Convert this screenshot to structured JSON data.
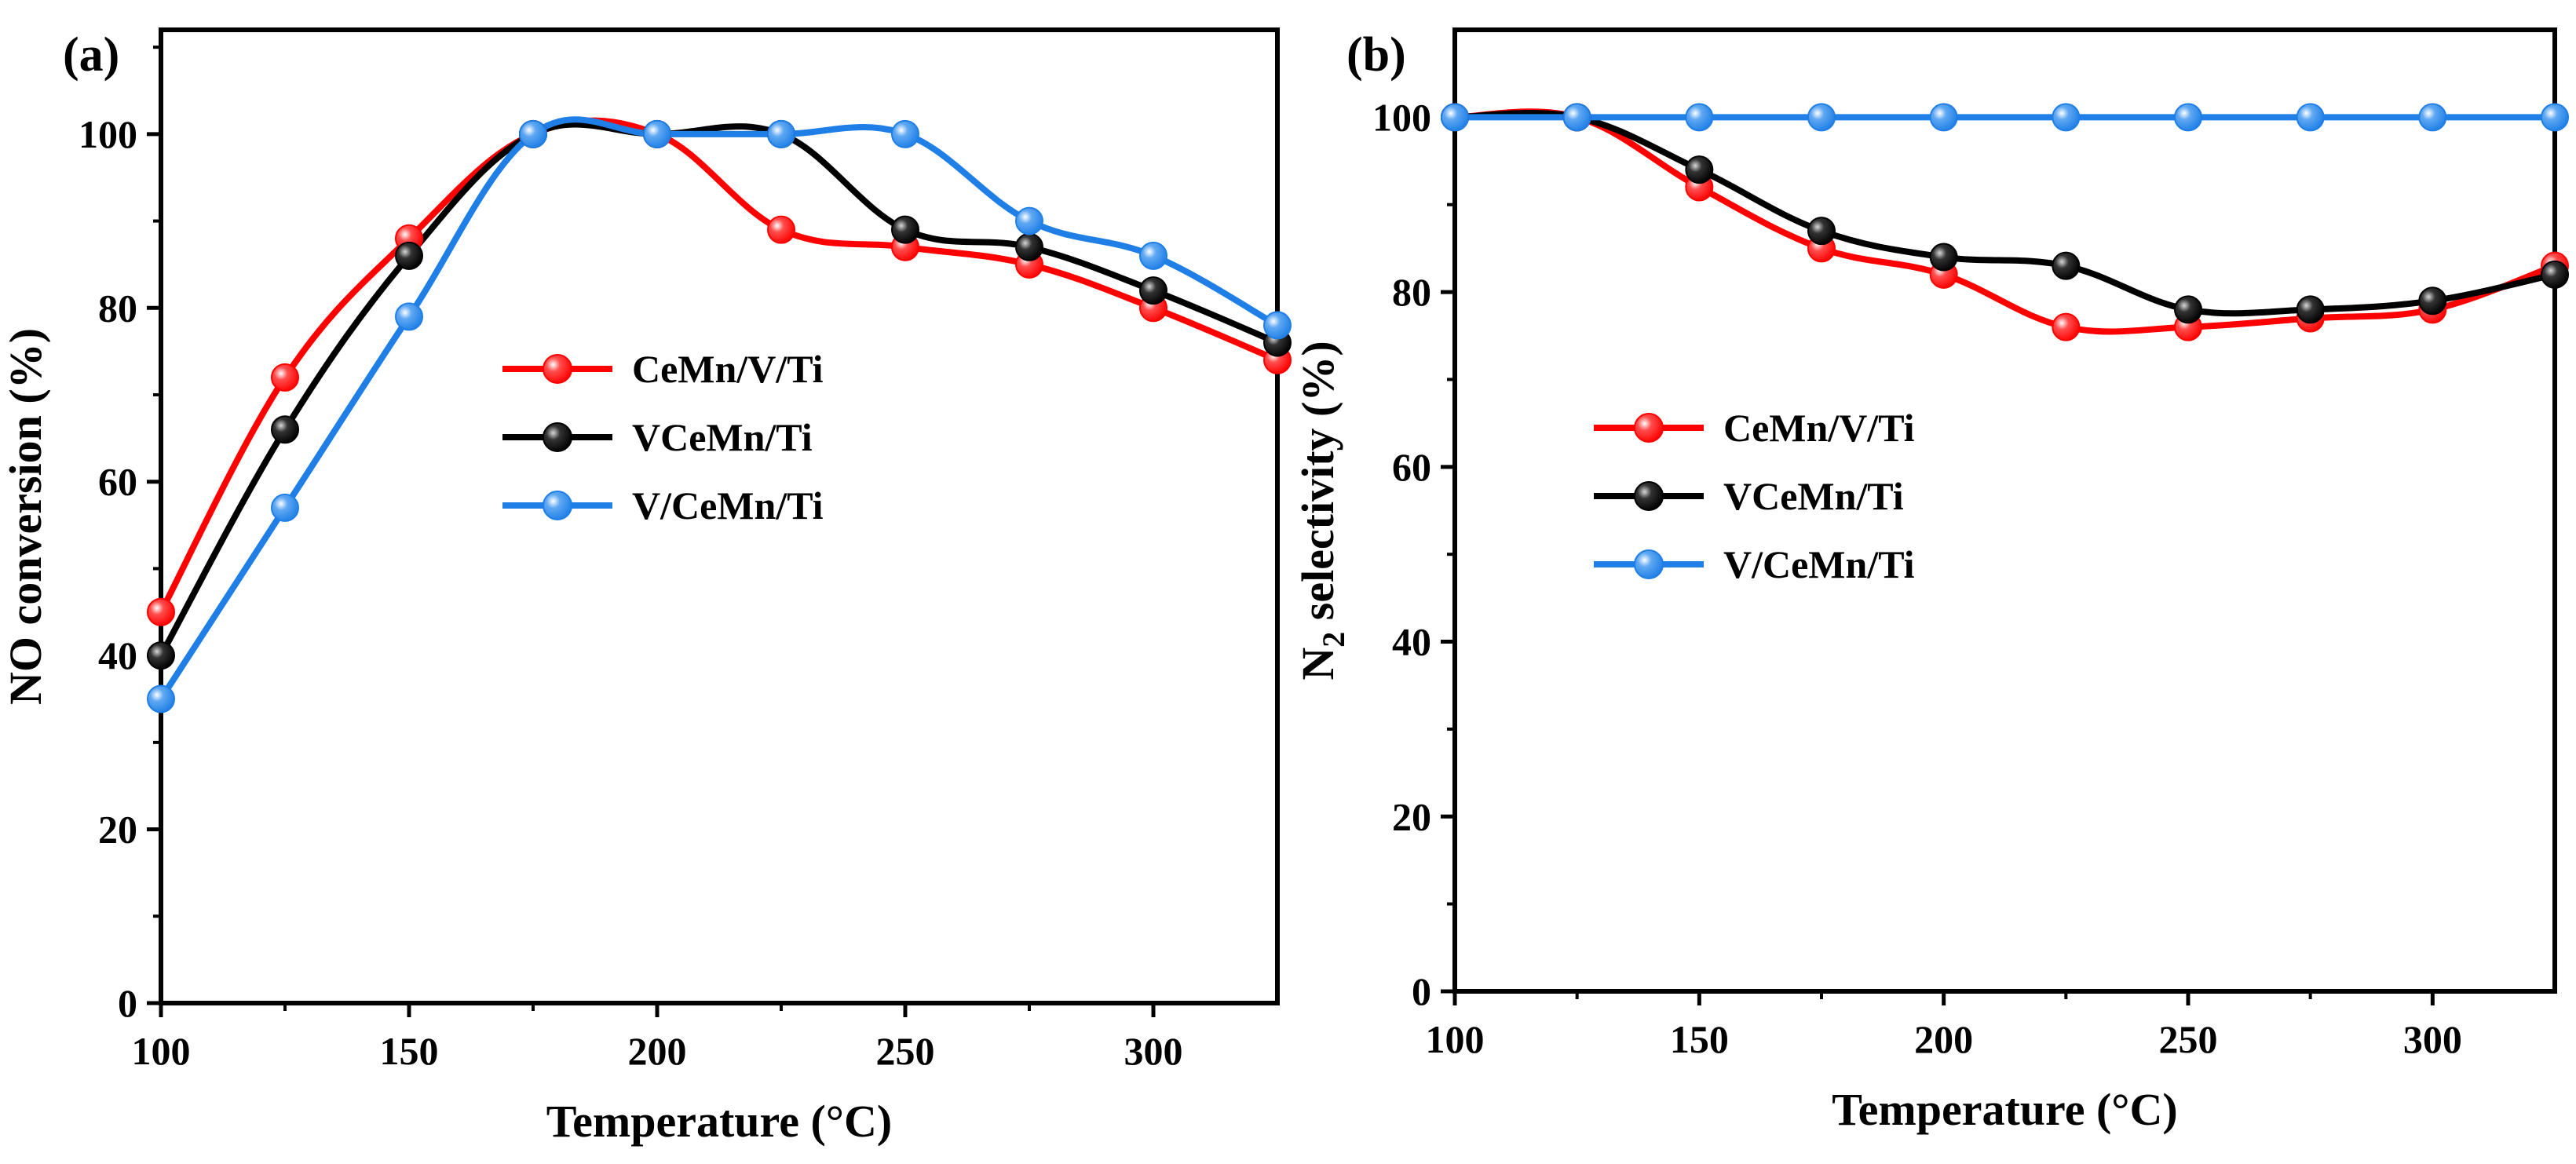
{
  "chart_data": [
    {
      "type": "line",
      "panel_label": "(a)",
      "xlabel": "Temperature (°C)",
      "ylabel": "NO conversion (%)",
      "xlim": [
        100,
        325
      ],
      "ylim": [
        0,
        112
      ],
      "x_ticks": [
        100,
        150,
        200,
        250,
        300
      ],
      "x_tick_labels": [
        "100",
        "150",
        "200",
        "250",
        "300"
      ],
      "y_ticks": [
        0,
        20,
        40,
        60,
        80,
        100
      ],
      "y_tick_labels": [
        "0",
        "20",
        "40",
        "60",
        "80",
        "100"
      ],
      "legend_position": "center-right",
      "x": [
        100,
        125,
        150,
        175,
        200,
        225,
        250,
        275,
        300,
        325
      ],
      "series": [
        {
          "name": "CeMn/V/Ti",
          "color": "#ff0000",
          "values": [
            45,
            72,
            88,
            100,
            100,
            89,
            87,
            85,
            80,
            74
          ]
        },
        {
          "name": "VCeMn/Ti",
          "color": "#000000",
          "values": [
            40,
            66,
            86,
            100,
            100,
            100,
            89,
            87,
            82,
            76
          ]
        },
        {
          "name": "V/CeMn/Ti",
          "color": "#1f7fe6",
          "values": [
            35,
            57,
            79,
            100,
            100,
            100,
            100,
            90,
            86,
            78
          ]
        }
      ]
    },
    {
      "type": "line",
      "panel_label": "(b)",
      "xlabel": "Temperature (°C)",
      "ylabel_main": "N",
      "ylabel_sub": "2",
      "ylabel_rest": " selectivity (%)",
      "xlim": [
        100,
        325
      ],
      "ylim": [
        0,
        110
      ],
      "x_ticks": [
        100,
        150,
        200,
        250,
        300
      ],
      "x_tick_labels": [
        "100",
        "150",
        "200",
        "250",
        "300"
      ],
      "y_ticks": [
        0,
        20,
        40,
        60,
        80,
        100
      ],
      "y_tick_labels": [
        "0",
        "20",
        "40",
        "60",
        "80",
        "100"
      ],
      "legend_position": "center-left",
      "x": [
        100,
        125,
        150,
        175,
        200,
        225,
        250,
        275,
        300,
        325
      ],
      "series": [
        {
          "name": "CeMn/V/Ti",
          "color": "#ff0000",
          "values": [
            100,
            100,
            92,
            85,
            82,
            76,
            76,
            77,
            78,
            83
          ]
        },
        {
          "name": "VCeMn/Ti",
          "color": "#000000",
          "values": [
            100,
            100,
            94,
            87,
            84,
            83,
            78,
            78,
            79,
            82
          ]
        },
        {
          "name": "V/CeMn/Ti",
          "color": "#1f7fe6",
          "values": [
            100,
            100,
            100,
            100,
            100,
            100,
            100,
            100,
            100,
            100
          ]
        }
      ]
    }
  ]
}
